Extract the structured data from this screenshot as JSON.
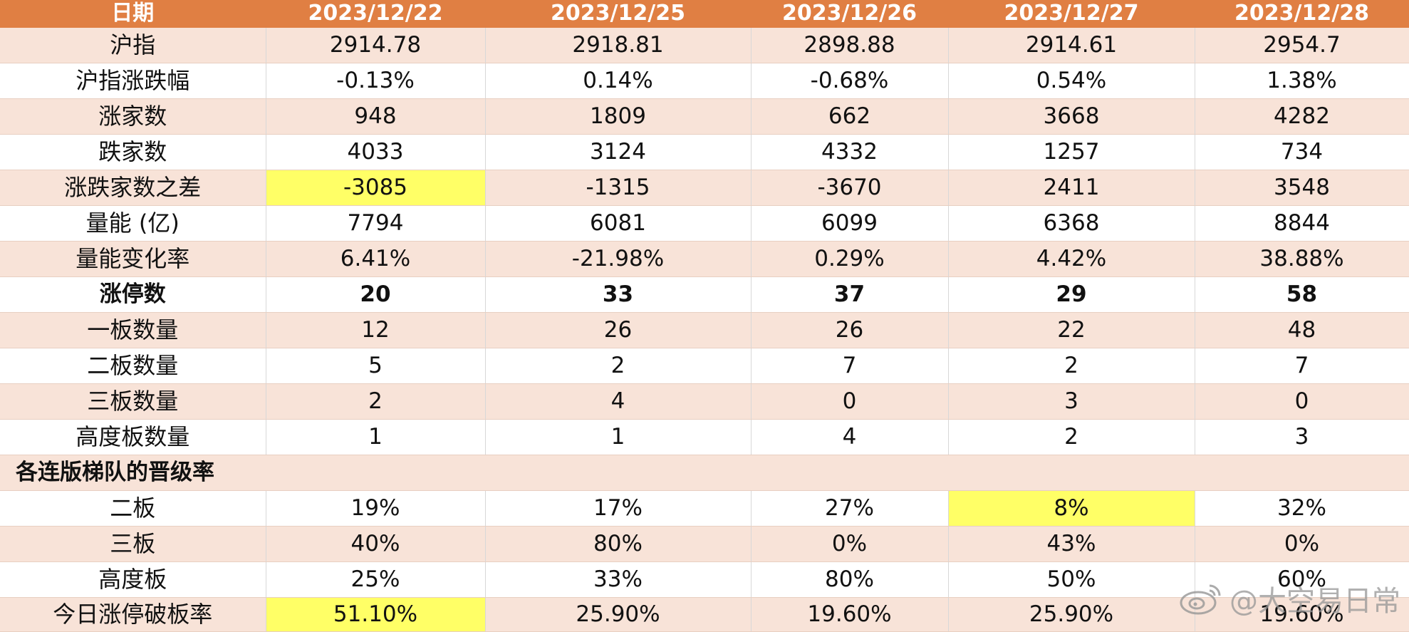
{
  "table": {
    "header": [
      "日期",
      "2023/12/22",
      "2023/12/25",
      "2023/12/26",
      "2023/12/27",
      "2023/12/28"
    ],
    "rows": [
      {
        "label": "沪指",
        "cells": [
          "2914.78",
          "2918.81",
          "2898.88",
          "2914.61",
          "2954.7"
        ]
      },
      {
        "label": "沪指涨跌幅",
        "cells": [
          "-0.13%",
          "0.14%",
          "-0.68%",
          "0.54%",
          "1.38%"
        ]
      },
      {
        "label": "涨家数",
        "cells": [
          "948",
          "1809",
          "662",
          "3668",
          "4282"
        ]
      },
      {
        "label": "跌家数",
        "cells": [
          "4033",
          "3124",
          "4332",
          "1257",
          "734"
        ]
      },
      {
        "label": "涨跌家数之差",
        "cells": [
          "-3085",
          "-1315",
          "-3670",
          "2411",
          "3548"
        ]
      },
      {
        "label": "量能 (亿)",
        "cells": [
          "7794",
          "6081",
          "6099",
          "6368",
          "8844"
        ]
      },
      {
        "label": "量能变化率",
        "cells": [
          "6.41%",
          "-21.98%",
          "0.29%",
          "4.42%",
          "38.88%"
        ]
      },
      {
        "label": "涨停数",
        "cells": [
          "20",
          "33",
          "37",
          "29",
          "58"
        ]
      },
      {
        "label": "一板数量",
        "cells": [
          "12",
          "26",
          "26",
          "22",
          "48"
        ]
      },
      {
        "label": "二板数量",
        "cells": [
          "5",
          "2",
          "7",
          "2",
          "7"
        ]
      },
      {
        "label": "三板数量",
        "cells": [
          "2",
          "4",
          "0",
          "3",
          "0"
        ]
      },
      {
        "label": "高度板数量",
        "cells": [
          "1",
          "1",
          "4",
          "2",
          "3"
        ]
      }
    ],
    "section_title": "各连版梯队的晋级率",
    "section_rows": [
      {
        "label": "二板",
        "cells": [
          "19%",
          "17%",
          "27%",
          "8%",
          "32%"
        ]
      },
      {
        "label": "三板",
        "cells": [
          "40%",
          "80%",
          "0%",
          "43%",
          "0%"
        ]
      },
      {
        "label": "高度板",
        "cells": [
          "25%",
          "33%",
          "80%",
          "50%",
          "60%"
        ]
      },
      {
        "label": "今日涨停破板率",
        "cells": [
          "51.10%",
          "25.90%",
          "19.60%",
          "25.90%",
          "19.60%"
        ]
      }
    ]
  },
  "highlights": {
    "color": "#ffff66",
    "cells": [
      "涨跌家数之差 / 2023/12/22",
      "二板 / 2023/12/27",
      "今日涨停破板率 / 2023/12/22"
    ]
  },
  "colors": {
    "header_bg": "#e07f43",
    "band_bg": "#f8e3d8"
  },
  "watermark": {
    "icon": "weibo-icon",
    "text": "@大空易日常"
  }
}
